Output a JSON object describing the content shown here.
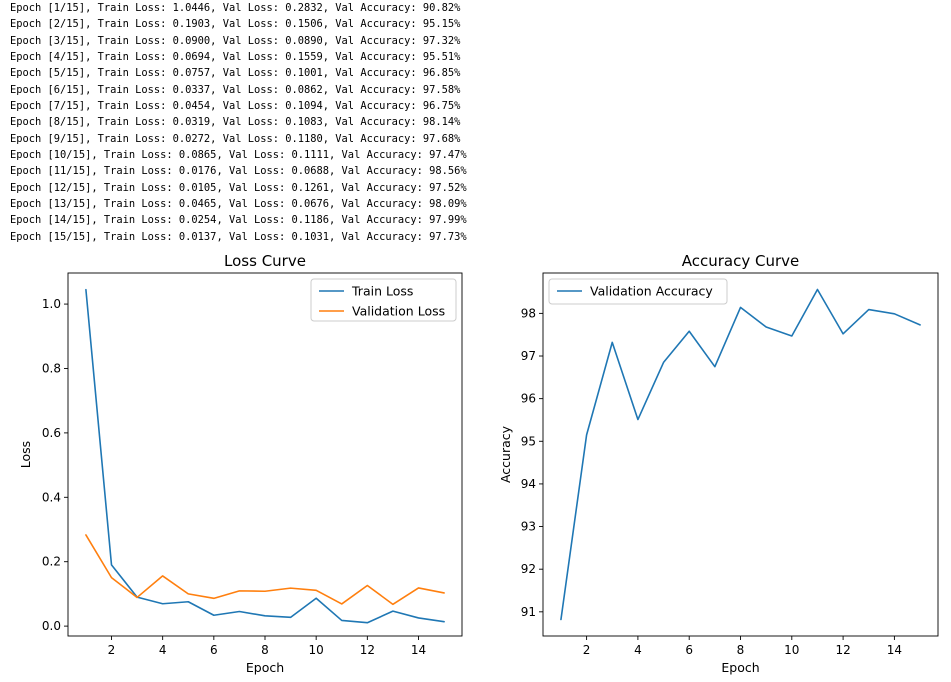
{
  "log_lines": [
    "Epoch [1/15], Train Loss: 1.0446, Val Loss: 0.2832, Val Accuracy: 90.82%",
    "Epoch [2/15], Train Loss: 0.1903, Val Loss: 0.1506, Val Accuracy: 95.15%",
    "Epoch [3/15], Train Loss: 0.0900, Val Loss: 0.0890, Val Accuracy: 97.32%",
    "Epoch [4/15], Train Loss: 0.0694, Val Loss: 0.1559, Val Accuracy: 95.51%",
    "Epoch [5/15], Train Loss: 0.0757, Val Loss: 0.1001, Val Accuracy: 96.85%",
    "Epoch [6/15], Train Loss: 0.0337, Val Loss: 0.0862, Val Accuracy: 97.58%",
    "Epoch [7/15], Train Loss: 0.0454, Val Loss: 0.1094, Val Accuracy: 96.75%",
    "Epoch [8/15], Train Loss: 0.0319, Val Loss: 0.1083, Val Accuracy: 98.14%",
    "Epoch [9/15], Train Loss: 0.0272, Val Loss: 0.1180, Val Accuracy: 97.68%",
    "Epoch [10/15], Train Loss: 0.0865, Val Loss: 0.1111, Val Accuracy: 97.47%",
    "Epoch [11/15], Train Loss: 0.0176, Val Loss: 0.0688, Val Accuracy: 98.56%",
    "Epoch [12/15], Train Loss: 0.0105, Val Loss: 0.1261, Val Accuracy: 97.52%",
    "Epoch [13/15], Train Loss: 0.0465, Val Loss: 0.0676, Val Accuracy: 98.09%",
    "Epoch [14/15], Train Loss: 0.0254, Val Loss: 0.1186, Val Accuracy: 97.99%",
    "Epoch [15/15], Train Loss: 0.0137, Val Loss: 0.1031, Val Accuracy: 97.73%"
  ],
  "chart_data": [
    {
      "type": "line",
      "title": "Loss Curve",
      "xlabel": "Epoch",
      "ylabel": "Loss",
      "x": [
        1,
        2,
        3,
        4,
        5,
        6,
        7,
        8,
        9,
        10,
        11,
        12,
        13,
        14,
        15
      ],
      "xlim": [
        0.3,
        15.7
      ],
      "ylim": [
        -0.0307,
        1.0965
      ],
      "xticks": [
        2,
        4,
        6,
        8,
        10,
        12,
        14
      ],
      "yticks": [
        0.0,
        0.2,
        0.4,
        0.6,
        0.8,
        1.0
      ],
      "ytick_labels": [
        "0.0",
        "0.2",
        "0.4",
        "0.6",
        "0.8",
        "1.0"
      ],
      "grid": false,
      "legend": "top-right",
      "series": [
        {
          "name": "Train Loss",
          "color": "#1f77b4",
          "values": [
            1.0446,
            0.1903,
            0.09,
            0.0694,
            0.0757,
            0.0337,
            0.0454,
            0.0319,
            0.0272,
            0.0865,
            0.0176,
            0.0105,
            0.0465,
            0.0254,
            0.0137
          ]
        },
        {
          "name": "Validation Loss",
          "color": "#ff7f0e",
          "values": [
            0.2832,
            0.1506,
            0.089,
            0.1559,
            0.1001,
            0.0862,
            0.1094,
            0.1083,
            0.118,
            0.1111,
            0.0688,
            0.1261,
            0.0676,
            0.1186,
            0.1031
          ]
        }
      ]
    },
    {
      "type": "line",
      "title": "Accuracy Curve",
      "xlabel": "Epoch",
      "ylabel": "Accuracy",
      "x": [
        1,
        2,
        3,
        4,
        5,
        6,
        7,
        8,
        9,
        10,
        11,
        12,
        13,
        14,
        15
      ],
      "xlim": [
        0.3,
        15.7
      ],
      "ylim": [
        90.433,
        98.947
      ],
      "xticks": [
        2,
        4,
        6,
        8,
        10,
        12,
        14
      ],
      "yticks": [
        91,
        92,
        93,
        94,
        95,
        96,
        97,
        98
      ],
      "ytick_labels": [
        "91",
        "92",
        "93",
        "94",
        "95",
        "96",
        "97",
        "98"
      ],
      "grid": false,
      "legend": "top-left",
      "series": [
        {
          "name": "Validation Accuracy",
          "color": "#1f77b4",
          "values": [
            90.82,
            95.15,
            97.32,
            95.51,
            96.85,
            97.58,
            96.75,
            98.14,
            97.68,
            97.47,
            98.56,
            97.52,
            98.09,
            97.99,
            97.73
          ]
        }
      ]
    }
  ]
}
